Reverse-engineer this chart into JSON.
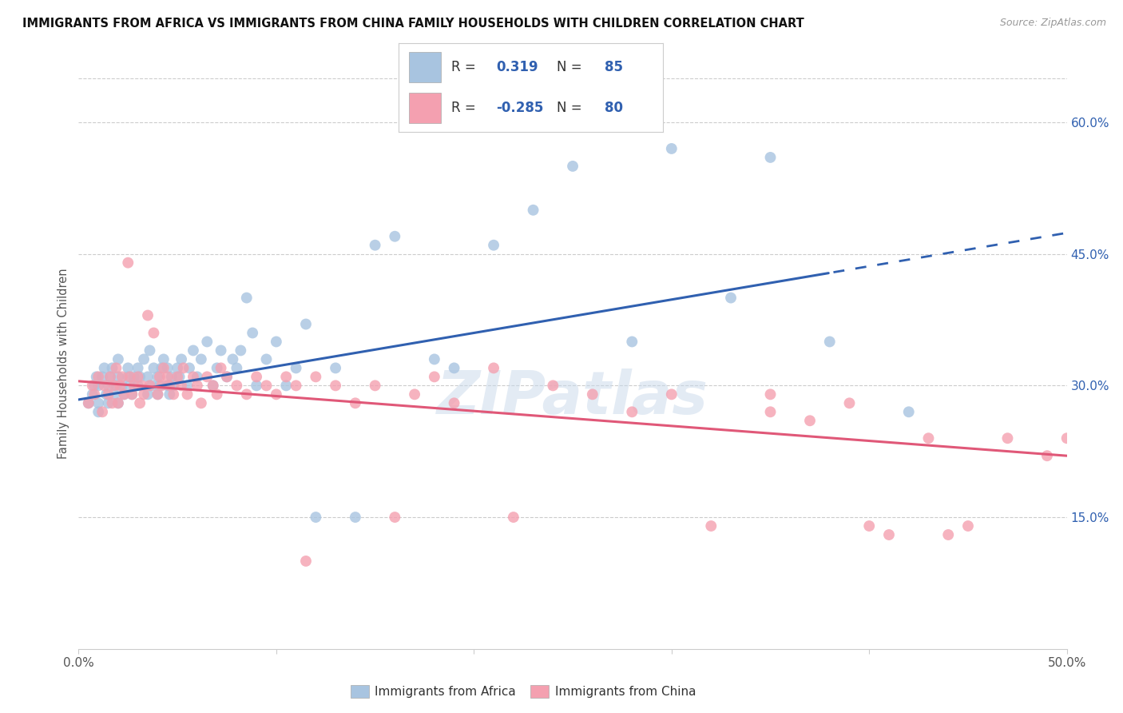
{
  "title": "IMMIGRANTS FROM AFRICA VS IMMIGRANTS FROM CHINA FAMILY HOUSEHOLDS WITH CHILDREN CORRELATION CHART",
  "source": "Source: ZipAtlas.com",
  "ylabel": "Family Households with Children",
  "xlim": [
    0.0,
    0.5
  ],
  "ylim": [
    0.0,
    0.65
  ],
  "xticks": [
    0.0,
    0.1,
    0.2,
    0.3,
    0.4,
    0.5
  ],
  "yticks": [
    0.15,
    0.3,
    0.45,
    0.6
  ],
  "ytick_labels": [
    "15.0%",
    "30.0%",
    "45.0%",
    "60.0%"
  ],
  "xtick_labels": [
    "0.0%",
    "",
    "",
    "",
    "",
    "50.0%"
  ],
  "africa_color": "#a8c4e0",
  "china_color": "#f4a0b0",
  "africa_line_color": "#3060b0",
  "china_line_color": "#e05878",
  "africa_R": 0.319,
  "africa_N": 85,
  "china_R": -0.285,
  "china_N": 80,
  "watermark": "ZIPatlas",
  "africa_scatter_x": [
    0.005,
    0.007,
    0.008,
    0.009,
    0.01,
    0.01,
    0.01,
    0.012,
    0.013,
    0.014,
    0.015,
    0.015,
    0.016,
    0.017,
    0.018,
    0.019,
    0.02,
    0.02,
    0.02,
    0.022,
    0.023,
    0.025,
    0.025,
    0.026,
    0.027,
    0.028,
    0.03,
    0.03,
    0.031,
    0.033,
    0.035,
    0.035,
    0.036,
    0.037,
    0.038,
    0.04,
    0.04,
    0.041,
    0.042,
    0.043,
    0.045,
    0.045,
    0.046,
    0.047,
    0.048,
    0.05,
    0.051,
    0.052,
    0.055,
    0.056,
    0.058,
    0.06,
    0.062,
    0.065,
    0.068,
    0.07,
    0.072,
    0.075,
    0.078,
    0.08,
    0.082,
    0.085,
    0.088,
    0.09,
    0.095,
    0.1,
    0.105,
    0.11,
    0.115,
    0.12,
    0.13,
    0.14,
    0.15,
    0.16,
    0.18,
    0.19,
    0.21,
    0.23,
    0.25,
    0.28,
    0.3,
    0.33,
    0.35,
    0.38,
    0.42
  ],
  "africa_scatter_y": [
    0.28,
    0.29,
    0.3,
    0.31,
    0.27,
    0.28,
    0.3,
    0.31,
    0.32,
    0.29,
    0.28,
    0.3,
    0.31,
    0.32,
    0.29,
    0.3,
    0.28,
    0.31,
    0.33,
    0.3,
    0.29,
    0.31,
    0.32,
    0.3,
    0.29,
    0.31,
    0.3,
    0.32,
    0.31,
    0.33,
    0.29,
    0.31,
    0.34,
    0.3,
    0.32,
    0.29,
    0.31,
    0.3,
    0.32,
    0.33,
    0.3,
    0.32,
    0.29,
    0.31,
    0.3,
    0.32,
    0.31,
    0.33,
    0.3,
    0.32,
    0.34,
    0.31,
    0.33,
    0.35,
    0.3,
    0.32,
    0.34,
    0.31,
    0.33,
    0.32,
    0.34,
    0.4,
    0.36,
    0.3,
    0.33,
    0.35,
    0.3,
    0.32,
    0.37,
    0.15,
    0.32,
    0.15,
    0.46,
    0.47,
    0.33,
    0.32,
    0.46,
    0.5,
    0.55,
    0.35,
    0.57,
    0.4,
    0.56,
    0.35,
    0.27
  ],
  "china_scatter_x": [
    0.005,
    0.007,
    0.008,
    0.01,
    0.012,
    0.013,
    0.015,
    0.016,
    0.017,
    0.018,
    0.019,
    0.02,
    0.021,
    0.022,
    0.023,
    0.025,
    0.026,
    0.027,
    0.028,
    0.03,
    0.031,
    0.032,
    0.033,
    0.035,
    0.036,
    0.038,
    0.04,
    0.041,
    0.042,
    0.043,
    0.045,
    0.046,
    0.048,
    0.05,
    0.052,
    0.053,
    0.055,
    0.058,
    0.06,
    0.062,
    0.065,
    0.068,
    0.07,
    0.072,
    0.075,
    0.08,
    0.085,
    0.09,
    0.095,
    0.1,
    0.105,
    0.11,
    0.115,
    0.12,
    0.13,
    0.14,
    0.15,
    0.16,
    0.17,
    0.18,
    0.19,
    0.21,
    0.22,
    0.24,
    0.26,
    0.28,
    0.3,
    0.32,
    0.35,
    0.37,
    0.39,
    0.41,
    0.43,
    0.45,
    0.47,
    0.49,
    0.5,
    0.35,
    0.4,
    0.44
  ],
  "china_scatter_y": [
    0.28,
    0.3,
    0.29,
    0.31,
    0.27,
    0.3,
    0.29,
    0.31,
    0.28,
    0.3,
    0.32,
    0.28,
    0.3,
    0.31,
    0.29,
    0.44,
    0.31,
    0.29,
    0.3,
    0.31,
    0.28,
    0.3,
    0.29,
    0.38,
    0.3,
    0.36,
    0.29,
    0.31,
    0.3,
    0.32,
    0.31,
    0.3,
    0.29,
    0.31,
    0.3,
    0.32,
    0.29,
    0.31,
    0.3,
    0.28,
    0.31,
    0.3,
    0.29,
    0.32,
    0.31,
    0.3,
    0.29,
    0.31,
    0.3,
    0.29,
    0.31,
    0.3,
    0.1,
    0.31,
    0.3,
    0.28,
    0.3,
    0.15,
    0.29,
    0.31,
    0.28,
    0.32,
    0.15,
    0.3,
    0.29,
    0.27,
    0.29,
    0.14,
    0.27,
    0.26,
    0.28,
    0.13,
    0.24,
    0.14,
    0.24,
    0.22,
    0.24,
    0.29,
    0.14,
    0.13
  ]
}
